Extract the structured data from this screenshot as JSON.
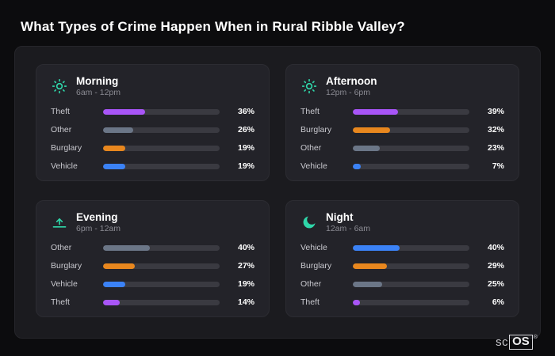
{
  "page": {
    "title": "What Types of Crime Happen When in Rural Ribble Valley?"
  },
  "logo": {
    "sc": "sc",
    "os": "OS",
    "reg": "®"
  },
  "colors": {
    "theft": "#a855f7",
    "other": "#6b7687",
    "burglary": "#e8871e",
    "vehicle": "#3b82f6",
    "icon_teal": "#2fd6a9"
  },
  "chart_data": [
    {
      "type": "bar",
      "title": "Morning",
      "subtitle": "6am - 12pm",
      "icon": "sun-icon",
      "categories": [
        "Theft",
        "Other",
        "Burglary",
        "Vehicle"
      ],
      "values": [
        36,
        26,
        19,
        19
      ],
      "value_labels": [
        "36%",
        "26%",
        "19%",
        "19%"
      ],
      "colors": [
        "#a855f7",
        "#6b7687",
        "#e8871e",
        "#3b82f6"
      ],
      "xlim": [
        0,
        100
      ]
    },
    {
      "type": "bar",
      "title": "Afternoon",
      "subtitle": "12pm - 6pm",
      "icon": "sun-icon",
      "categories": [
        "Theft",
        "Burglary",
        "Other",
        "Vehicle"
      ],
      "values": [
        39,
        32,
        23,
        7
      ],
      "value_labels": [
        "39%",
        "32%",
        "23%",
        "7%"
      ],
      "colors": [
        "#a855f7",
        "#e8871e",
        "#6b7687",
        "#3b82f6"
      ],
      "xlim": [
        0,
        100
      ]
    },
    {
      "type": "bar",
      "title": "Evening",
      "subtitle": "6pm - 12am",
      "icon": "sunset-icon",
      "categories": [
        "Other",
        "Burglary",
        "Vehicle",
        "Theft"
      ],
      "values": [
        40,
        27,
        19,
        14
      ],
      "value_labels": [
        "40%",
        "27%",
        "19%",
        "14%"
      ],
      "colors": [
        "#6b7687",
        "#e8871e",
        "#3b82f6",
        "#a855f7"
      ],
      "xlim": [
        0,
        100
      ]
    },
    {
      "type": "bar",
      "title": "Night",
      "subtitle": "12am - 6am",
      "icon": "moon-icon",
      "categories": [
        "Vehicle",
        "Burglary",
        "Other",
        "Theft"
      ],
      "values": [
        40,
        29,
        25,
        6
      ],
      "value_labels": [
        "40%",
        "29%",
        "25%",
        "6%"
      ],
      "colors": [
        "#3b82f6",
        "#e8871e",
        "#6b7687",
        "#a855f7"
      ],
      "xlim": [
        0,
        100
      ]
    }
  ]
}
